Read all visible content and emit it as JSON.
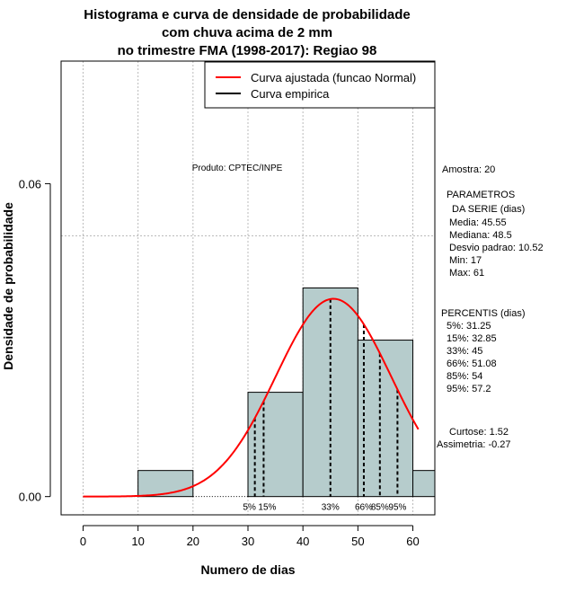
{
  "chart_data": {
    "type": "bar",
    "title_lines": [
      "Histograma e curva de densidade de probabilidade",
      "com chuva acima de 2 mm",
      "no trimestre FMA (1998-2017): Regiao 98"
    ],
    "xlabel": "Numero de dias",
    "ylabel": "Densidade de probabilidade",
    "xlim": [
      -4,
      64
    ],
    "ylim": [
      -0.0035,
      0.0835
    ],
    "x_ticks": [
      0,
      10,
      20,
      30,
      40,
      50,
      60
    ],
    "x_tick_labels": [
      "0",
      "10",
      "20",
      "30",
      "40",
      "50",
      "60"
    ],
    "y_ticks": [
      0.0,
      0.06
    ],
    "y_tick_labels": [
      "0.00",
      "0.06"
    ],
    "grid_x": [
      0,
      10,
      20,
      30,
      40,
      50,
      60
    ],
    "grid_y": [
      0.05
    ],
    "bins": [
      {
        "from": 10,
        "to": 20,
        "density": 0.005
      },
      {
        "from": 30,
        "to": 40,
        "density": 0.02
      },
      {
        "from": 40,
        "to": 50,
        "density": 0.04
      },
      {
        "from": 50,
        "to": 60,
        "density": 0.03
      },
      {
        "from": 60,
        "to": 70,
        "density": 0.005
      }
    ],
    "bar_color": "#b6cccc",
    "normal_curve": {
      "mean": 45.55,
      "sd": 10.52,
      "x_from": 0,
      "x_to": 61,
      "color": "#ff0000"
    },
    "percentile_lines": [
      {
        "x": 31.25,
        "label": "5%"
      },
      {
        "x": 32.85,
        "label": "15%"
      },
      {
        "x": 45,
        "label": "33%"
      },
      {
        "x": 51.08,
        "label": "66%"
      },
      {
        "x": 54,
        "label": "85%"
      },
      {
        "x": 57.2,
        "label": "95%"
      }
    ],
    "legend": [
      {
        "label": "Curva ajustada (funcao Normal)",
        "color": "#ff0000"
      },
      {
        "label": "Curva empirica",
        "color": "#000000"
      }
    ],
    "annotation": "Produto: CPTEC/INPE"
  },
  "stats_panel": [
    "Amostra: 20",
    "PARAMETROS",
    "DA SERIE (dias)",
    "Media: 45.55",
    "Mediana: 48.5",
    "Desvio padrao: 10.52",
    "Min: 17",
    "Max: 61",
    "PERCENTIS (dias)",
    "5%: 31.25",
    "15%: 32.85",
    "33%: 45",
    "66%: 51.08",
    "85%: 54",
    "95%: 57.2",
    "Curtose: 1.52",
    "Assimetria: -0.27"
  ]
}
